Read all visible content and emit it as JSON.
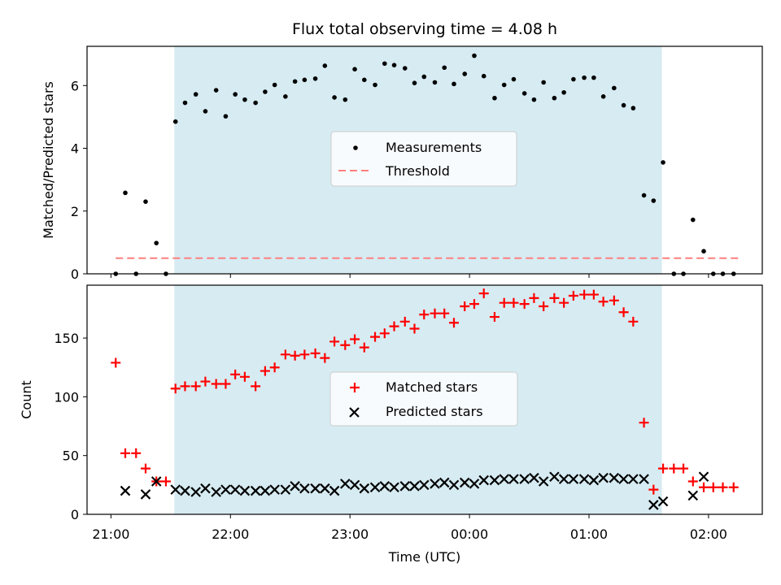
{
  "chart_data": [
    {
      "type": "scatter",
      "title": "Flux total observing time = 4.08 h",
      "ylabel": "Matched/Predicted stars",
      "xlabel": "",
      "x_unit": "hours since 21:00 UTC",
      "xlim": [
        -0.2,
        5.45
      ],
      "ylim": [
        0,
        7.25
      ],
      "yticks": [
        0,
        2,
        4,
        6
      ],
      "shaded_interval": [
        0.53,
        4.61
      ],
      "grid": false,
      "legend": {
        "placement": "center",
        "entries": [
          "Measurements",
          "Threshold"
        ]
      },
      "threshold": {
        "name": "Threshold",
        "value": 0.5,
        "x_range": [
          0.04,
          5.25
        ],
        "color": "#ff7f7f"
      },
      "series": [
        {
          "name": "Measurements",
          "color": "#000000",
          "x": [
            0.04,
            0.12,
            0.21,
            0.29,
            0.38,
            0.46,
            0.54,
            0.62,
            0.71,
            0.79,
            0.88,
            0.96,
            1.04,
            1.12,
            1.21,
            1.29,
            1.37,
            1.46,
            1.54,
            1.62,
            1.71,
            1.79,
            1.87,
            1.96,
            2.04,
            2.12,
            2.21,
            2.29,
            2.37,
            2.46,
            2.54,
            2.62,
            2.71,
            2.79,
            2.87,
            2.96,
            3.04,
            3.12,
            3.21,
            3.29,
            3.37,
            3.46,
            3.54,
            3.62,
            3.71,
            3.79,
            3.87,
            3.96,
            4.04,
            4.12,
            4.21,
            4.29,
            4.37,
            4.46,
            4.54,
            4.62,
            4.71,
            4.79,
            4.87,
            4.96,
            5.04,
            5.12,
            5.21
          ],
          "y": [
            0,
            2.58,
            0,
            2.3,
            0.98,
            0,
            4.85,
            5.45,
            5.72,
            5.18,
            5.85,
            5.02,
            5.72,
            5.55,
            5.45,
            5.8,
            6.02,
            5.65,
            6.13,
            6.18,
            6.22,
            6.63,
            5.62,
            5.55,
            6.52,
            6.18,
            6.02,
            6.7,
            6.65,
            6.55,
            6.08,
            6.28,
            6.1,
            6.57,
            6.05,
            6.37,
            6.95,
            6.3,
            5.6,
            6.02,
            6.2,
            5.75,
            5.55,
            6.1,
            5.6,
            5.78,
            6.2,
            6.25,
            6.25,
            5.65,
            5.92,
            5.37,
            5.28,
            2.5,
            2.33,
            3.55,
            0,
            0,
            1.72,
            0.72,
            0,
            0,
            0
          ]
        }
      ]
    },
    {
      "type": "scatter",
      "title": "",
      "xlabel": "Time (UTC)",
      "ylabel": "Count",
      "x_unit": "hours since 21:00 UTC",
      "xlim": [
        -0.2,
        5.45
      ],
      "ylim": [
        0,
        195
      ],
      "yticks": [
        0,
        50,
        100,
        150
      ],
      "xticks": [
        {
          "value": 0,
          "label": "21:00"
        },
        {
          "value": 1,
          "label": "22:00"
        },
        {
          "value": 2,
          "label": "23:00"
        },
        {
          "value": 3,
          "label": "00:00"
        },
        {
          "value": 4,
          "label": "01:00"
        },
        {
          "value": 5,
          "label": "02:00"
        }
      ],
      "shaded_interval": [
        0.53,
        4.61
      ],
      "grid": false,
      "legend": {
        "placement": "center",
        "entries": [
          "Matched stars",
          "Predicted stars"
        ]
      },
      "series": [
        {
          "name": "Matched stars",
          "marker": "plus",
          "color": "#ff0000",
          "x": [
            0.04,
            0.12,
            0.21,
            0.29,
            0.38,
            0.46,
            0.54,
            0.62,
            0.71,
            0.79,
            0.88,
            0.96,
            1.04,
            1.12,
            1.21,
            1.29,
            1.37,
            1.46,
            1.54,
            1.62,
            1.71,
            1.79,
            1.87,
            1.96,
            2.04,
            2.12,
            2.21,
            2.29,
            2.37,
            2.46,
            2.54,
            2.62,
            2.71,
            2.79,
            2.87,
            2.96,
            3.04,
            3.12,
            3.21,
            3.29,
            3.37,
            3.46,
            3.54,
            3.62,
            3.71,
            3.79,
            3.87,
            3.96,
            4.04,
            4.12,
            4.21,
            4.29,
            4.37,
            4.46,
            4.54,
            4.62,
            4.71,
            4.79,
            4.87,
            4.96,
            5.04,
            5.12,
            5.21
          ],
          "y": [
            129,
            52,
            52,
            39,
            28,
            28,
            107,
            109,
            109,
            113,
            111,
            111,
            119,
            117,
            109,
            122,
            125,
            136,
            135,
            136,
            137,
            133,
            147,
            144,
            149,
            142,
            151,
            154,
            160,
            164,
            158,
            170,
            171,
            171,
            163,
            177,
            179,
            188,
            168,
            180,
            180,
            179,
            184,
            177,
            184,
            180,
            186,
            187,
            187,
            181,
            182,
            172,
            164,
            78,
            21,
            39,
            39,
            39,
            28,
            23,
            23,
            23,
            23
          ]
        },
        {
          "name": "Predicted stars",
          "marker": "x",
          "color": "#000000",
          "x": [
            0.12,
            0.29,
            0.38,
            0.54,
            0.62,
            0.71,
            0.79,
            0.88,
            0.96,
            1.04,
            1.12,
            1.21,
            1.29,
            1.37,
            1.46,
            1.54,
            1.62,
            1.71,
            1.79,
            1.87,
            1.96,
            2.04,
            2.12,
            2.21,
            2.29,
            2.37,
            2.46,
            2.54,
            2.62,
            2.71,
            2.79,
            2.87,
            2.96,
            3.04,
            3.12,
            3.21,
            3.29,
            3.37,
            3.46,
            3.54,
            3.62,
            3.71,
            3.79,
            3.87,
            3.96,
            4.04,
            4.12,
            4.21,
            4.29,
            4.37,
            4.46,
            4.54,
            4.62,
            4.87,
            4.96
          ],
          "y": [
            20,
            17,
            28,
            21,
            20,
            19,
            22,
            19,
            21,
            21,
            20,
            20,
            20,
            21,
            21,
            24,
            22,
            22,
            22,
            20,
            26,
            25,
            22,
            23,
            24,
            23,
            24,
            24,
            25,
            26,
            27,
            25,
            27,
            26,
            29,
            29,
            30,
            30,
            30,
            31,
            28,
            32,
            30,
            30,
            30,
            29,
            31,
            31,
            30,
            30,
            30,
            8,
            11,
            16,
            32
          ]
        }
      ]
    }
  ]
}
